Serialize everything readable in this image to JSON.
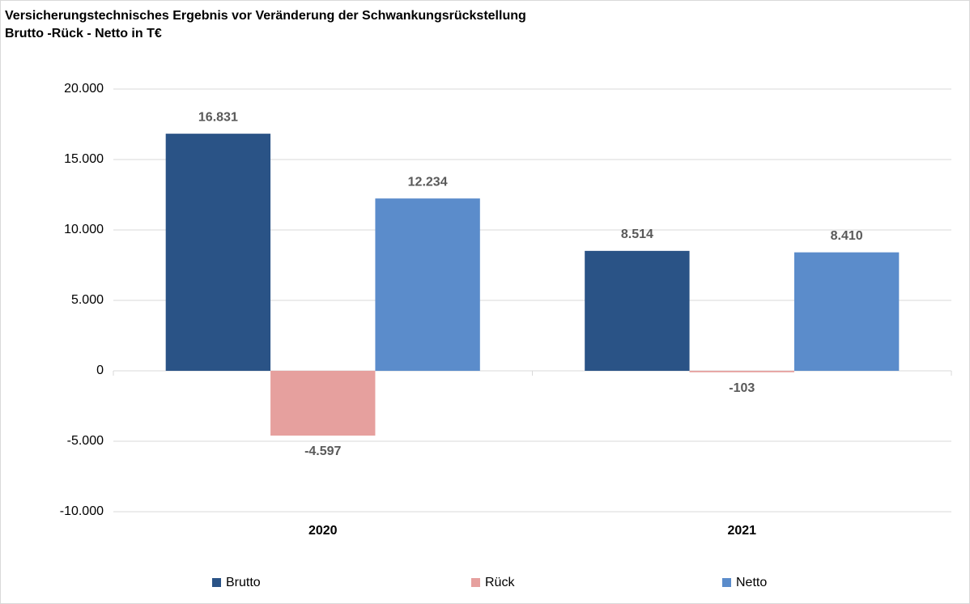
{
  "chart_data": {
    "type": "bar",
    "title": "Versicherungstechnisches  Ergebnis vor Veränderung der Schwankungsrückstellung",
    "subtitle": "Brutto  -Rück - Netto in T€",
    "categories": [
      "2020",
      "2021"
    ],
    "series": [
      {
        "name": "Brutto",
        "color": "#2a5386",
        "values": [
          16831,
          8514
        ],
        "value_labels": [
          "16.831",
          "8.514"
        ]
      },
      {
        "name": "Rück",
        "color": "#e6a09e",
        "values": [
          -4597,
          -103
        ],
        "value_labels": [
          "-4.597",
          "-103"
        ]
      },
      {
        "name": "Netto",
        "color": "#5b8ccb",
        "values": [
          12234,
          8410
        ],
        "value_labels": [
          "12.234",
          "8.410"
        ]
      }
    ],
    "ylim": [
      -10000,
      20000
    ],
    "yticks": [
      {
        "value": -10000,
        "label": "-10.000"
      },
      {
        "value": -5000,
        "label": "-5.000"
      },
      0,
      {
        "value": 5000,
        "label": "5.000"
      },
      {
        "value": 10000,
        "label": "10.000"
      },
      {
        "value": 15000,
        "label": "15.000"
      },
      {
        "value": 20000,
        "label": "20.000"
      }
    ],
    "grid": true,
    "legend": "bottom"
  }
}
